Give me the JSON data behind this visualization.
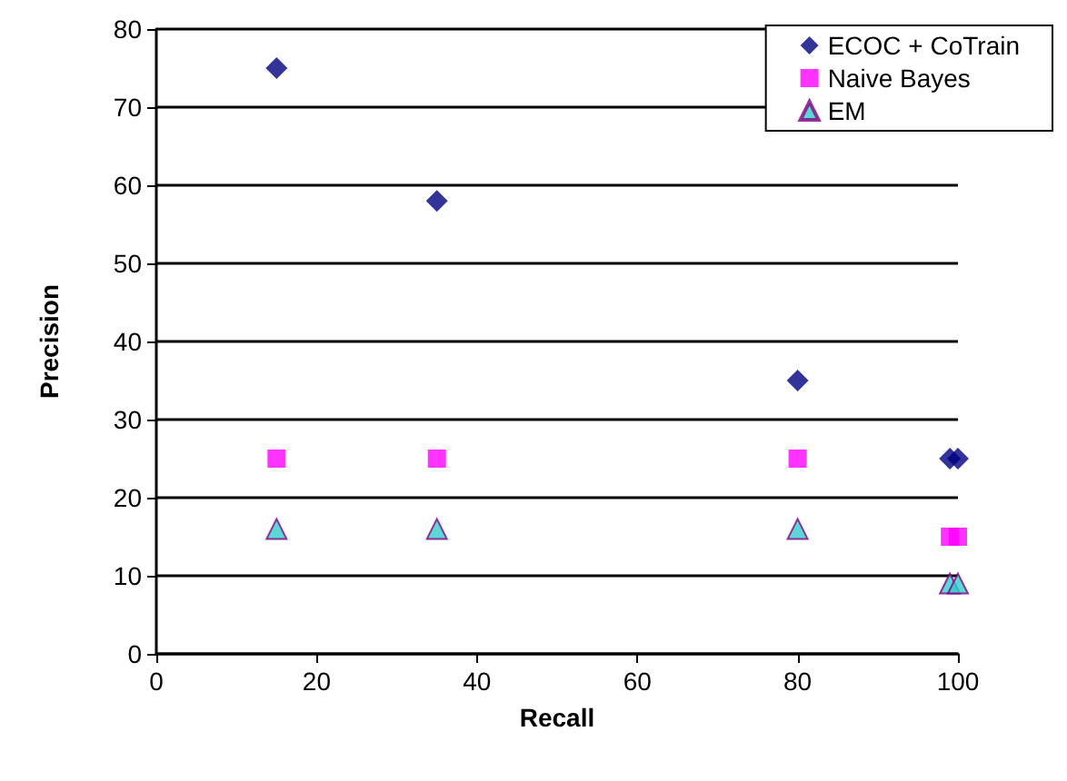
{
  "chart_data": {
    "type": "scatter",
    "xlabel": "Recall",
    "ylabel": "Precision",
    "xlim": [
      0,
      100
    ],
    "xticks": [
      0,
      20,
      40,
      60,
      80,
      100
    ],
    "ylim": [
      0,
      80
    ],
    "yticks": [
      0,
      10,
      20,
      30,
      40,
      50,
      60,
      70,
      80
    ],
    "grid": "y",
    "legend": "top right",
    "series": [
      {
        "name": "ECOC + CoTrain",
        "color": "#000080",
        "marker": "diamond",
        "x": [
          15,
          35,
          80,
          99,
          100
        ],
        "values": [
          75,
          58,
          35,
          25,
          25
        ]
      },
      {
        "name": "Naive Bayes",
        "color": "#ff00ff",
        "marker": "square",
        "x": [
          15,
          35,
          80,
          99,
          100
        ],
        "values": [
          25,
          25,
          25,
          15,
          15
        ]
      },
      {
        "name": "EM",
        "color": "#33cccc",
        "marker": "triangle",
        "x": [
          15,
          35,
          80,
          99,
          100
        ],
        "values": [
          16,
          16,
          16,
          9,
          9
        ]
      }
    ]
  }
}
